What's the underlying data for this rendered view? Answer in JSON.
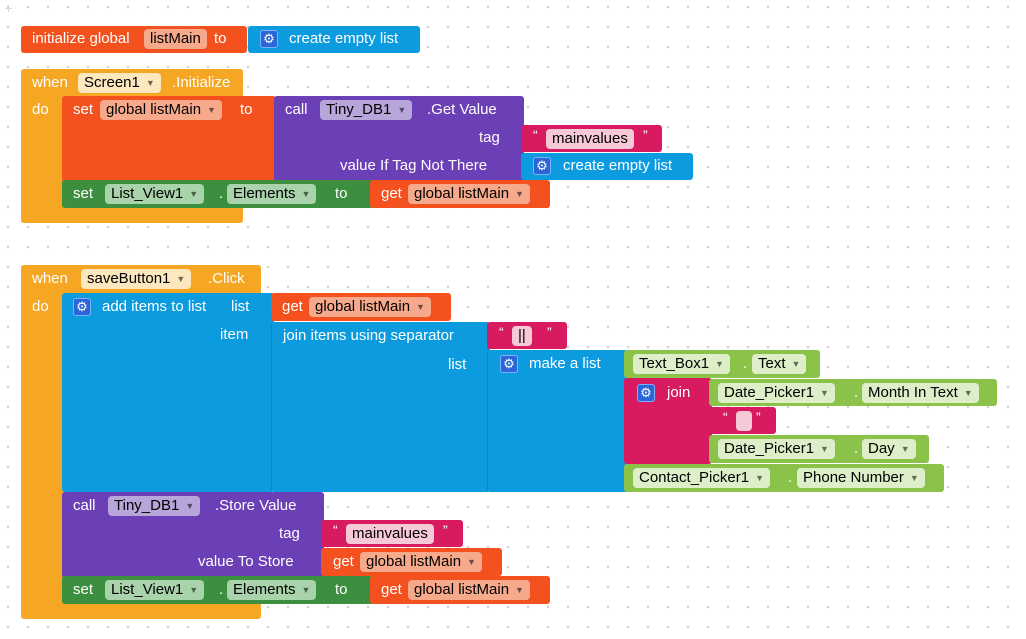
{
  "colors": {
    "event": "#f5a623",
    "variable": "#f4511e",
    "component_method": "#6b3fb5",
    "list": "#0d9be0",
    "component_setter": "#3b8f3e",
    "component_getter": "#8bc34a",
    "text": "#d81b60"
  },
  "init": {
    "label": "initialize global",
    "name": "listMain",
    "to": "to",
    "create_empty": "create empty list"
  },
  "screen_init": {
    "when": "when",
    "component": "Screen1",
    "event": ".Initialize",
    "do": "do",
    "set": "set",
    "var": "global listMain",
    "to": "to",
    "call": "call",
    "db": "Tiny_DB1",
    "method": ".Get Value",
    "tag": "tag",
    "tag_value": "mainvalues",
    "if_not": "value If Tag Not There",
    "create_empty": "create empty list",
    "set2": "set",
    "list_view": "List_View1",
    "dot": ".",
    "prop": "Elements",
    "to2": "to",
    "get": "get",
    "get_var": "global listMain"
  },
  "save_click": {
    "when": "when",
    "component": "saveButton1",
    "event": ".Click",
    "do": "do",
    "add_items": "add items to list",
    "list_label": "list",
    "get": "get",
    "get_var": "global listMain",
    "item_label": "item",
    "join_sep": "join items using separator",
    "sep_value": "||",
    "list2_label": "list",
    "make_list": "make a list",
    "textbox": "Text_Box1",
    "textbox_prop": "Text",
    "join": "join",
    "date_picker": "Date_Picker1",
    "month_prop": "Month In Text",
    "space_value": " ",
    "day_prop": "Day",
    "contact_picker": "Contact_Picker1",
    "phone_prop": "Phone Number",
    "dot": ".",
    "call": "call",
    "db": "Tiny_DB1",
    "store_method": ".Store Value",
    "tag": "tag",
    "tag_value": "mainvalues",
    "value_to_store": "value To Store",
    "get2": "get",
    "get_var2": "global listMain",
    "set": "set",
    "list_view": "List_View1",
    "prop": "Elements",
    "to": "to",
    "get3": "get",
    "get_var3": "global listMain"
  },
  "icons": {
    "gear": "gear-icon",
    "dropdown": "chevron-down-icon"
  }
}
